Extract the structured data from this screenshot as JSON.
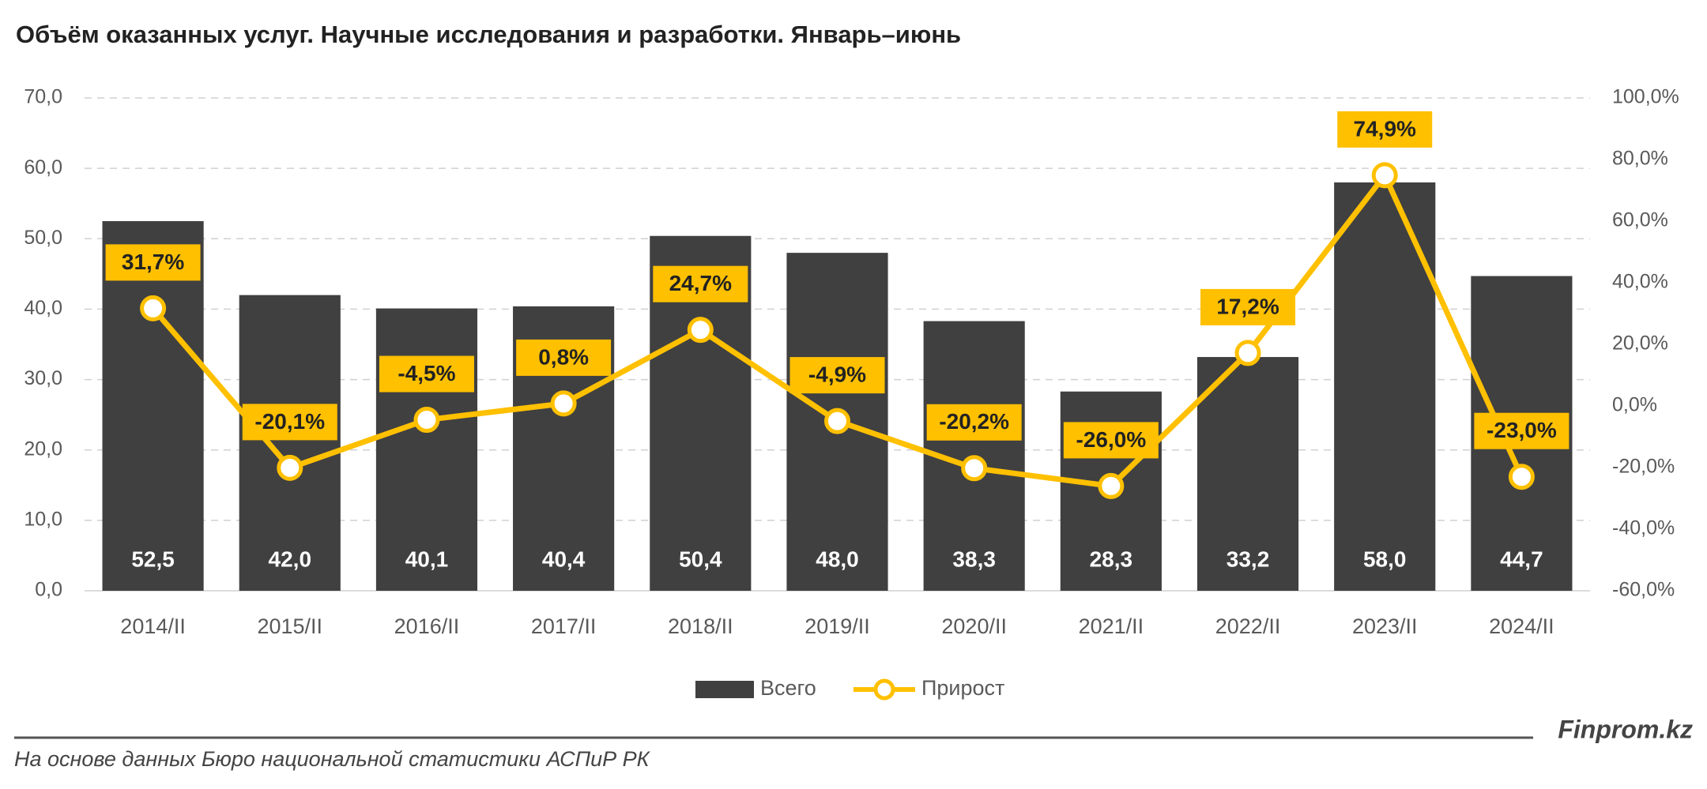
{
  "chart_data": {
    "type": "bar-line",
    "title": "Объём оказанных услуг. Научные исследования и разработки. Январь–июнь",
    "categories": [
      "2014/II",
      "2015/II",
      "2016/II",
      "2017/II",
      "2018/II",
      "2019/II",
      "2020/II",
      "2021/II",
      "2022/II",
      "2023/II",
      "2024/II"
    ],
    "series": [
      {
        "name": "Всего",
        "color": "#404040",
        "values": [
          52.5,
          42.0,
          40.1,
          40.4,
          50.4,
          48.0,
          38.3,
          28.3,
          33.2,
          58.0,
          44.7
        ],
        "value_labels": [
          "52,5",
          "42,0",
          "40,1",
          "40,4",
          "50,4",
          "48,0",
          "38,3",
          "28,3",
          "33,2",
          "58,0",
          "44,7"
        ]
      },
      {
        "name": "Прирост",
        "color": "#FFC000",
        "axis": "y2",
        "values": [
          31.7,
          -20.1,
          -4.5,
          0.8,
          24.7,
          -4.9,
          -20.2,
          -26.0,
          17.2,
          74.9,
          -23.0
        ],
        "value_labels": [
          "31,7%",
          "-20,1%",
          "-4,5%",
          "0,8%",
          "24,7%",
          "-4,9%",
          "-20,2%",
          "-26,0%",
          "17,2%",
          "74,9%",
          "-23,0%"
        ]
      }
    ],
    "ylim": [
      0,
      70
    ],
    "yticks": [
      {
        "value": 0,
        "label": "0,0"
      },
      {
        "value": 10,
        "label": "10,0"
      },
      {
        "value": 20,
        "label": "20,0"
      },
      {
        "value": 30,
        "label": "30,0"
      },
      {
        "value": 40,
        "label": "40,0"
      },
      {
        "value": 50,
        "label": "50,0"
      },
      {
        "value": 60,
        "label": "60,0"
      },
      {
        "value": 70,
        "label": "70,0"
      }
    ],
    "y2lim": [
      -60,
      100
    ],
    "y2ticks": [
      {
        "value": -60,
        "label": "-60,0%"
      },
      {
        "value": -40,
        "label": "-40,0%"
      },
      {
        "value": -20,
        "label": "-20,0%"
      },
      {
        "value": 0,
        "label": "0,0%"
      },
      {
        "value": 20,
        "label": "20,0%"
      },
      {
        "value": 40,
        "label": "40,0%"
      },
      {
        "value": 60,
        "label": "60,0%"
      },
      {
        "value": 80,
        "label": "80,0%"
      },
      {
        "value": 100,
        "label": "100,0%"
      }
    ],
    "grid": true,
    "legend": "bottom",
    "source": "На основе данных Бюро национальной статистики АСПиР РК",
    "brand": "Finprom.kz"
  }
}
